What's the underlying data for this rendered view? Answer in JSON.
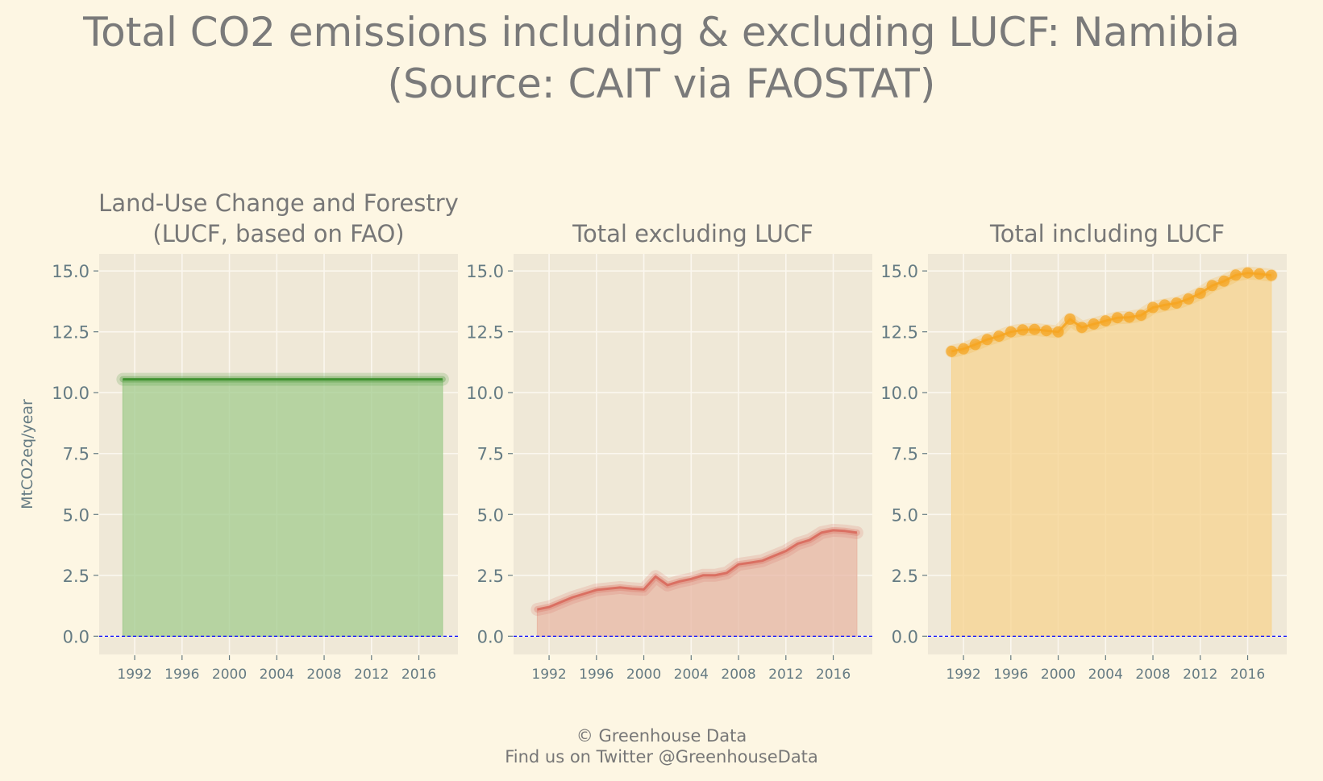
{
  "title": "Total CO2 emissions including & excluding LUCF: Namibia\n(Source: CAIT via FAOSTAT)",
  "footer": {
    "line1": "© Greenhouse Data",
    "line2": "Find us on Twitter @GreenhouseData"
  },
  "colors": {
    "background": "#fdf6e3",
    "panel": "#efe8d7",
    "grid": "#fbf7ef",
    "text": "#777777",
    "tick_text": "#657b83",
    "zero_line": "#0000ff",
    "lucf_line": "#3a8f2a",
    "lucf_fill": "#a3cc8f",
    "excl_line": "#d96a5d",
    "excl_fill": "#e8b8a5",
    "incl_line": "#f5a623",
    "incl_fill": "#f7d490"
  },
  "chart_data": [
    {
      "type": "area",
      "title": "Land-Use Change and Forestry\n(LUCF, based on FAO)",
      "xlabel": "",
      "ylabel": "MtCO2eq/year",
      "x": [
        1991,
        1992,
        1993,
        1994,
        1995,
        1996,
        1997,
        1998,
        1999,
        2000,
        2001,
        2002,
        2003,
        2004,
        2005,
        2006,
        2007,
        2008,
        2009,
        2010,
        2011,
        2012,
        2013,
        2014,
        2015,
        2016,
        2017,
        2018
      ],
      "values": [
        10.55,
        10.55,
        10.55,
        10.55,
        10.55,
        10.55,
        10.55,
        10.55,
        10.55,
        10.55,
        10.55,
        10.55,
        10.55,
        10.55,
        10.55,
        10.55,
        10.55,
        10.55,
        10.55,
        10.55,
        10.55,
        10.55,
        10.55,
        10.55,
        10.55,
        10.55,
        10.55,
        10.55
      ],
      "markers": false,
      "xlim": [
        1989.0,
        2019.3
      ],
      "ylim": [
        -0.75,
        15.7
      ],
      "yticks": [
        "0.0",
        "2.5",
        "5.0",
        "7.5",
        "10.0",
        "12.5",
        "15.0"
      ],
      "xticks": [
        "1992",
        "1996",
        "2000",
        "2004",
        "2008",
        "2012",
        "2016"
      ],
      "grid": true,
      "color_key": "lucf"
    },
    {
      "type": "area",
      "title": "Total excluding LUCF",
      "xlabel": "",
      "ylabel": "",
      "x": [
        1991,
        1992,
        1993,
        1994,
        1995,
        1996,
        1997,
        1998,
        1999,
        2000,
        2001,
        2002,
        2003,
        2004,
        2005,
        2006,
        2007,
        2008,
        2009,
        2010,
        2011,
        2012,
        2013,
        2014,
        2015,
        2016,
        2017,
        2018
      ],
      "values": [
        1.1,
        1.2,
        1.4,
        1.6,
        1.75,
        1.9,
        1.95,
        2.0,
        1.95,
        1.92,
        2.45,
        2.1,
        2.25,
        2.35,
        2.5,
        2.5,
        2.6,
        2.95,
        3.02,
        3.1,
        3.3,
        3.5,
        3.8,
        3.95,
        4.25,
        4.35,
        4.32,
        4.25
      ],
      "markers": false,
      "xlim": [
        1989.0,
        2019.3
      ],
      "ylim": [
        -0.75,
        15.7
      ],
      "yticks": [
        "0.0",
        "2.5",
        "5.0",
        "7.5",
        "10.0",
        "12.5",
        "15.0"
      ],
      "xticks": [
        "1992",
        "1996",
        "2000",
        "2004",
        "2008",
        "2012",
        "2016"
      ],
      "grid": true,
      "color_key": "excl"
    },
    {
      "type": "area",
      "title": "Total including LUCF",
      "xlabel": "",
      "ylabel": "",
      "x": [
        1991,
        1992,
        1993,
        1994,
        1995,
        1996,
        1997,
        1998,
        1999,
        2000,
        2001,
        2002,
        2003,
        2004,
        2005,
        2006,
        2007,
        2008,
        2009,
        2010,
        2011,
        2012,
        2013,
        2014,
        2015,
        2016,
        2017,
        2018
      ],
      "values": [
        11.7,
        11.8,
        11.98,
        12.18,
        12.32,
        12.5,
        12.58,
        12.6,
        12.55,
        12.5,
        13.02,
        12.68,
        12.82,
        12.95,
        13.08,
        13.1,
        13.18,
        13.5,
        13.6,
        13.68,
        13.85,
        14.08,
        14.4,
        14.58,
        14.83,
        14.92,
        14.88,
        14.82
      ],
      "markers": true,
      "xlim": [
        1989.0,
        2019.3
      ],
      "ylim": [
        -0.75,
        15.7
      ],
      "yticks": [
        "0.0",
        "2.5",
        "5.0",
        "7.5",
        "10.0",
        "12.5",
        "15.0"
      ],
      "xticks": [
        "1992",
        "1996",
        "2000",
        "2004",
        "2008",
        "2012",
        "2016"
      ],
      "grid": true,
      "color_key": "incl"
    }
  ]
}
